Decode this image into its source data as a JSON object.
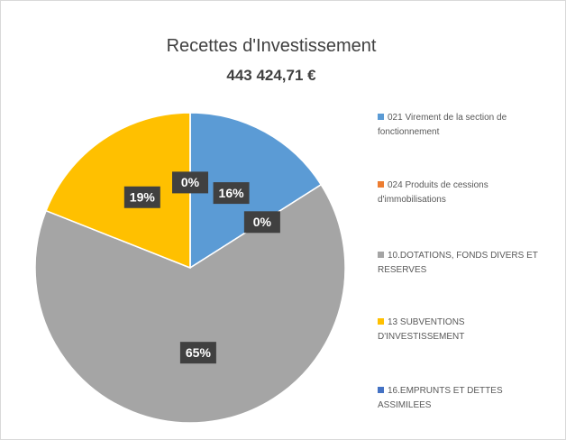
{
  "chart_data": {
    "type": "pie",
    "title": "Recettes d'Investissement",
    "subtitle": "443 424,71 €",
    "categories": [
      "021 Virement de la section de fonctionnement",
      "024 Produits de cessions d'immobilisations",
      "10.DOTATIONS, FONDS DIVERS ET RESERVES",
      "13 SUBVENTIONS D'INVESTISSEMENT",
      "16.EMPRUNTS ET DETTES ASSIMILEES"
    ],
    "values": [
      16,
      0,
      65,
      19,
      0
    ],
    "value_labels": [
      "16%",
      "0%",
      "65%",
      "19%",
      "0%"
    ],
    "colors": [
      "#5b9bd5",
      "#ed7d31",
      "#a5a5a5",
      "#ffc000",
      "#4472c4"
    ],
    "legend": "right"
  }
}
